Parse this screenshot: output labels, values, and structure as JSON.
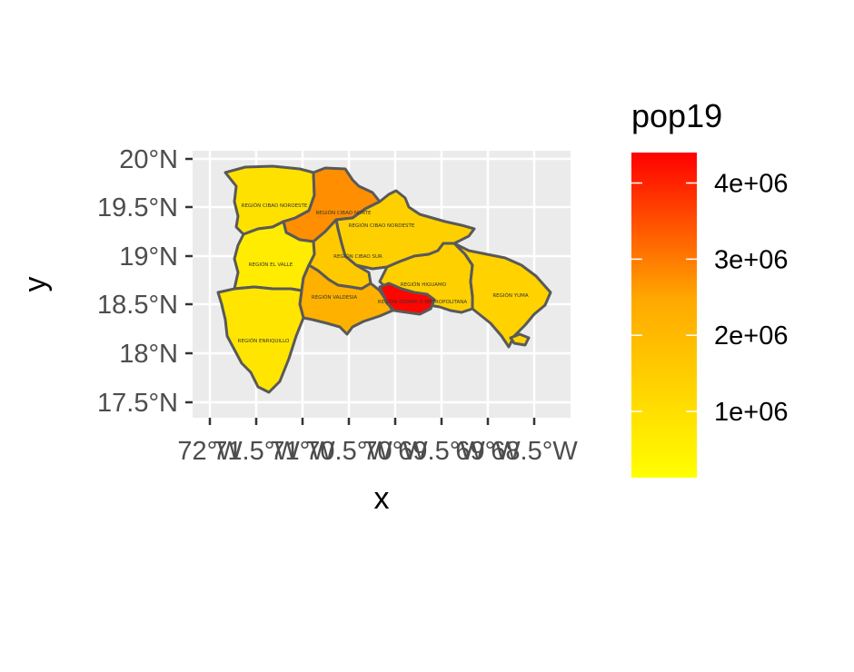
{
  "chart_data": {
    "type": "choropleth",
    "xlabel": "x",
    "ylabel": "y",
    "x_ticks": [
      "72°W",
      "71.5°W",
      "71°W",
      "70.5°W",
      "70°W",
      "69.5°W",
      "69°W",
      "68.5°W"
    ],
    "y_ticks": [
      "17.5°N",
      "18°N",
      "18.5°N",
      "19°N",
      "19.5°N",
      "20°N"
    ],
    "xlim": [
      -72.2,
      -68.2
    ],
    "ylim": [
      17.4,
      20.1
    ],
    "grid": true,
    "legend": {
      "title": "pop19",
      "position": "right",
      "breaks": [
        1000000,
        2000000,
        3000000,
        4000000
      ],
      "break_labels": [
        "1e+06",
        "2e+06",
        "3e+06",
        "4e+06"
      ],
      "range": [
        130000,
        4400000
      ],
      "low_color": "#ffff00",
      "high_color": "#ff0000"
    },
    "regions": [
      {
        "name": "REGIÓN CIBAO NOROESTE",
        "pop19": 430000
      },
      {
        "name": "REGIÓN CIBAO NORTE",
        "pop19": 1650000
      },
      {
        "name": "REGIÓN CIBAO NORDESTE",
        "pop19": 650000
      },
      {
        "name": "REGIÓN CIBAO SUR",
        "pop19": 750000
      },
      {
        "name": "REGIÓN EL VALLE",
        "pop19": 300000
      },
      {
        "name": "REGIÓN VALDESIA",
        "pop19": 1100000
      },
      {
        "name": "REGIÓN ENRIQUILLO",
        "pop19": 380000
      },
      {
        "name": "REGIÓN HIGUAMO",
        "pop19": 640000
      },
      {
        "name": "REGIÓN OZAMA O METROPOLITANA",
        "pop19": 4300000
      },
      {
        "name": "REGIÓN YUMA",
        "pop19": 620000
      }
    ]
  }
}
